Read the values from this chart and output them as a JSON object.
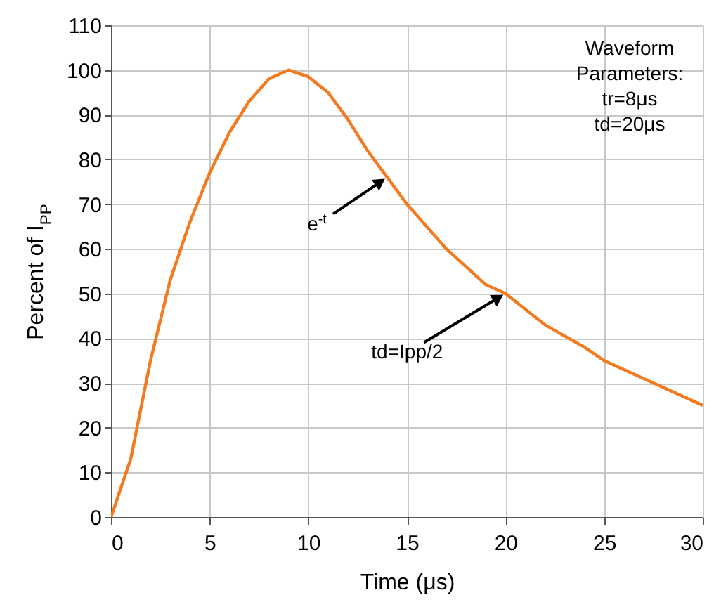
{
  "chart_data": {
    "type": "line",
    "xlabel": "Time (μs)",
    "ylabel": "Percent of I$_{PP}$",
    "x": [
      0,
      1,
      2,
      3,
      4,
      5,
      6,
      7,
      8,
      9,
      10,
      11,
      12,
      13,
      14,
      15,
      16,
      17,
      18,
      19,
      20,
      22,
      24,
      25,
      26,
      28,
      30
    ],
    "series": [
      {
        "color": "#f47a20",
        "values": [
          0,
          13,
          35,
          53,
          66,
          77,
          86,
          93,
          98,
          100,
          98.5,
          95,
          89,
          82,
          76,
          70,
          65,
          60,
          56,
          52,
          50,
          43,
          38,
          35,
          33,
          29,
          25
        ]
      }
    ],
    "xlim": [
      0,
      30
    ],
    "xticks": [
      0,
      5,
      10,
      15,
      20,
      25,
      30
    ],
    "ylim": [
      0,
      110
    ],
    "yticks": [
      0,
      10,
      20,
      30,
      40,
      50,
      60,
      70,
      80,
      90,
      100,
      110
    ],
    "grid": true,
    "marker": "none",
    "line_style": "solid",
    "annotations": [
      "Waveform\nParameters:\ntr=8μs\ntd=20μs",
      {
        "text": "e$^{-t}$",
        "x": 14,
        "y": 76
      },
      {
        "text": "td=Ipp/2",
        "x": 20,
        "y": 50
      }
    ]
  }
}
